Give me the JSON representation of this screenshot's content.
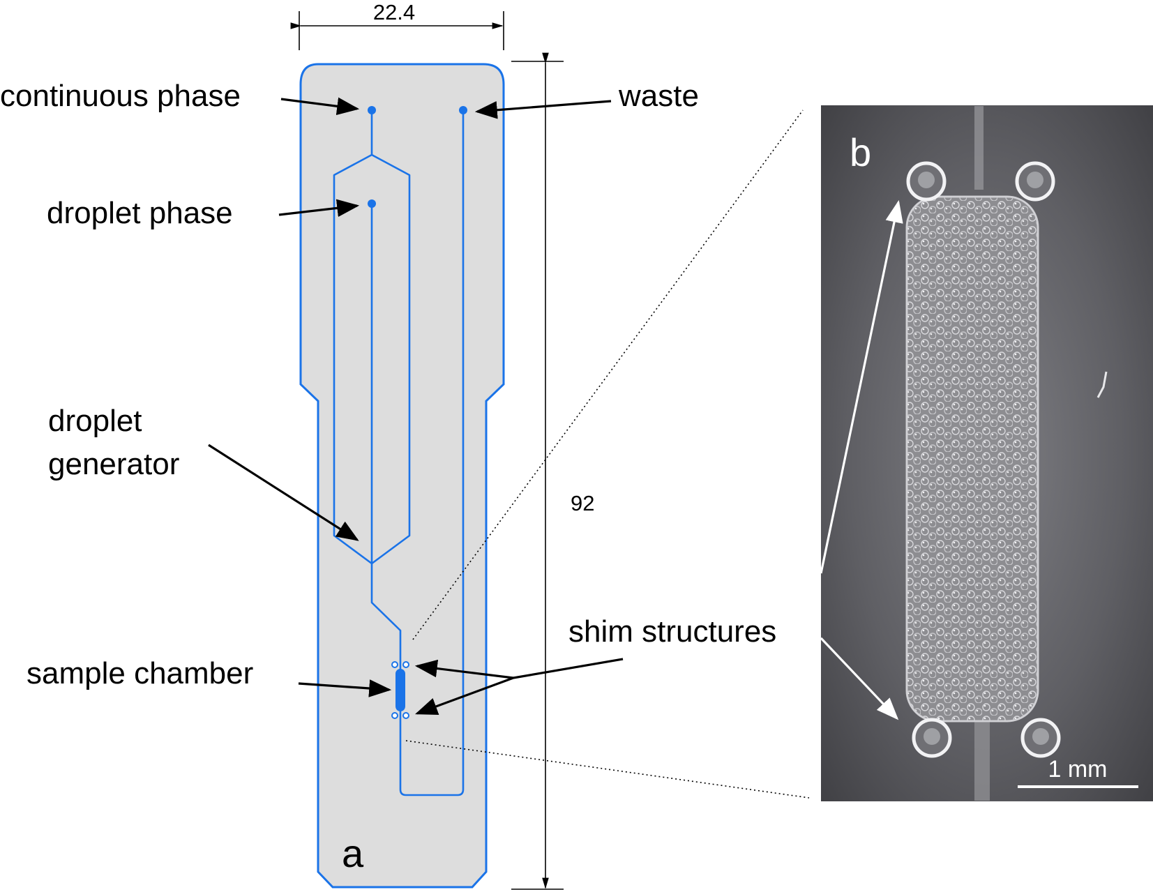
{
  "panels": {
    "a": "a",
    "b": "b"
  },
  "dimensions": {
    "width": "22.4",
    "length": "92"
  },
  "labels": {
    "continuous_phase": "continuous phase",
    "waste": "waste",
    "droplet_phase": "droplet phase",
    "droplet_generator_line1": "droplet",
    "droplet_generator_line2": "generator",
    "shim_structures": "shim structures",
    "sample_chamber": "sample chamber"
  },
  "scale_bar": "1 mm",
  "colors": {
    "channel": "#1a73e8",
    "chip_fill": "#dddddd"
  }
}
